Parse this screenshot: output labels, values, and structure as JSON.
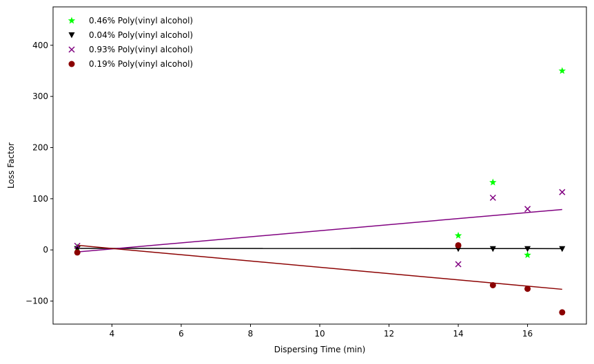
{
  "chart_data": {
    "type": "scatter",
    "title": "",
    "xlabel": "Dispersing Time (min)",
    "ylabel": "Loss Factor",
    "xlim": [
      2.3,
      17.7
    ],
    "ylim": [
      -145,
      475
    ],
    "xticks": [
      4,
      6,
      8,
      10,
      12,
      14,
      16
    ],
    "yticks": [
      -100,
      0,
      100,
      200,
      300,
      400
    ],
    "xtick_labels": [
      "4",
      "6",
      "8",
      "10",
      "12",
      "14",
      "16"
    ],
    "ytick_labels": [
      "−100",
      "0",
      "100",
      "200",
      "300",
      "400"
    ],
    "grid": false,
    "legend_position": "top-left",
    "series": [
      {
        "name": "0.46% Poly(vinyl alcohol)",
        "color": "#00ff00",
        "marker": "star",
        "x": [
          3,
          14,
          15,
          16,
          17
        ],
        "y": [
          5,
          28,
          132,
          -10,
          350
        ],
        "fit_line": null
      },
      {
        "name": "0.04% Poly(vinyl alcohol)",
        "color": "#000000",
        "marker": "triangle-down",
        "x": [
          3,
          14,
          15,
          16,
          17
        ],
        "y": [
          2,
          2,
          2,
          2,
          2
        ],
        "fit_line": {
          "x": [
            3,
            17
          ],
          "y": [
            3,
            2.5
          ]
        }
      },
      {
        "name": "0.93% Poly(vinyl alcohol)",
        "color": "#800080",
        "marker": "x",
        "x": [
          3,
          14,
          15,
          16,
          17
        ],
        "y": [
          8,
          -28,
          102,
          80,
          113
        ],
        "fit_line": {
          "x": [
            3,
            17
          ],
          "y": [
            -4,
            79
          ]
        }
      },
      {
        "name": "0.19% Poly(vinyl alcohol)",
        "color": "#8b0000",
        "marker": "circle",
        "x": [
          3,
          14,
          15,
          16,
          17
        ],
        "y": [
          -5,
          9,
          -69,
          -76,
          -122
        ],
        "fit_line": {
          "x": [
            3,
            17
          ],
          "y": [
            9,
            -77
          ]
        }
      }
    ]
  }
}
